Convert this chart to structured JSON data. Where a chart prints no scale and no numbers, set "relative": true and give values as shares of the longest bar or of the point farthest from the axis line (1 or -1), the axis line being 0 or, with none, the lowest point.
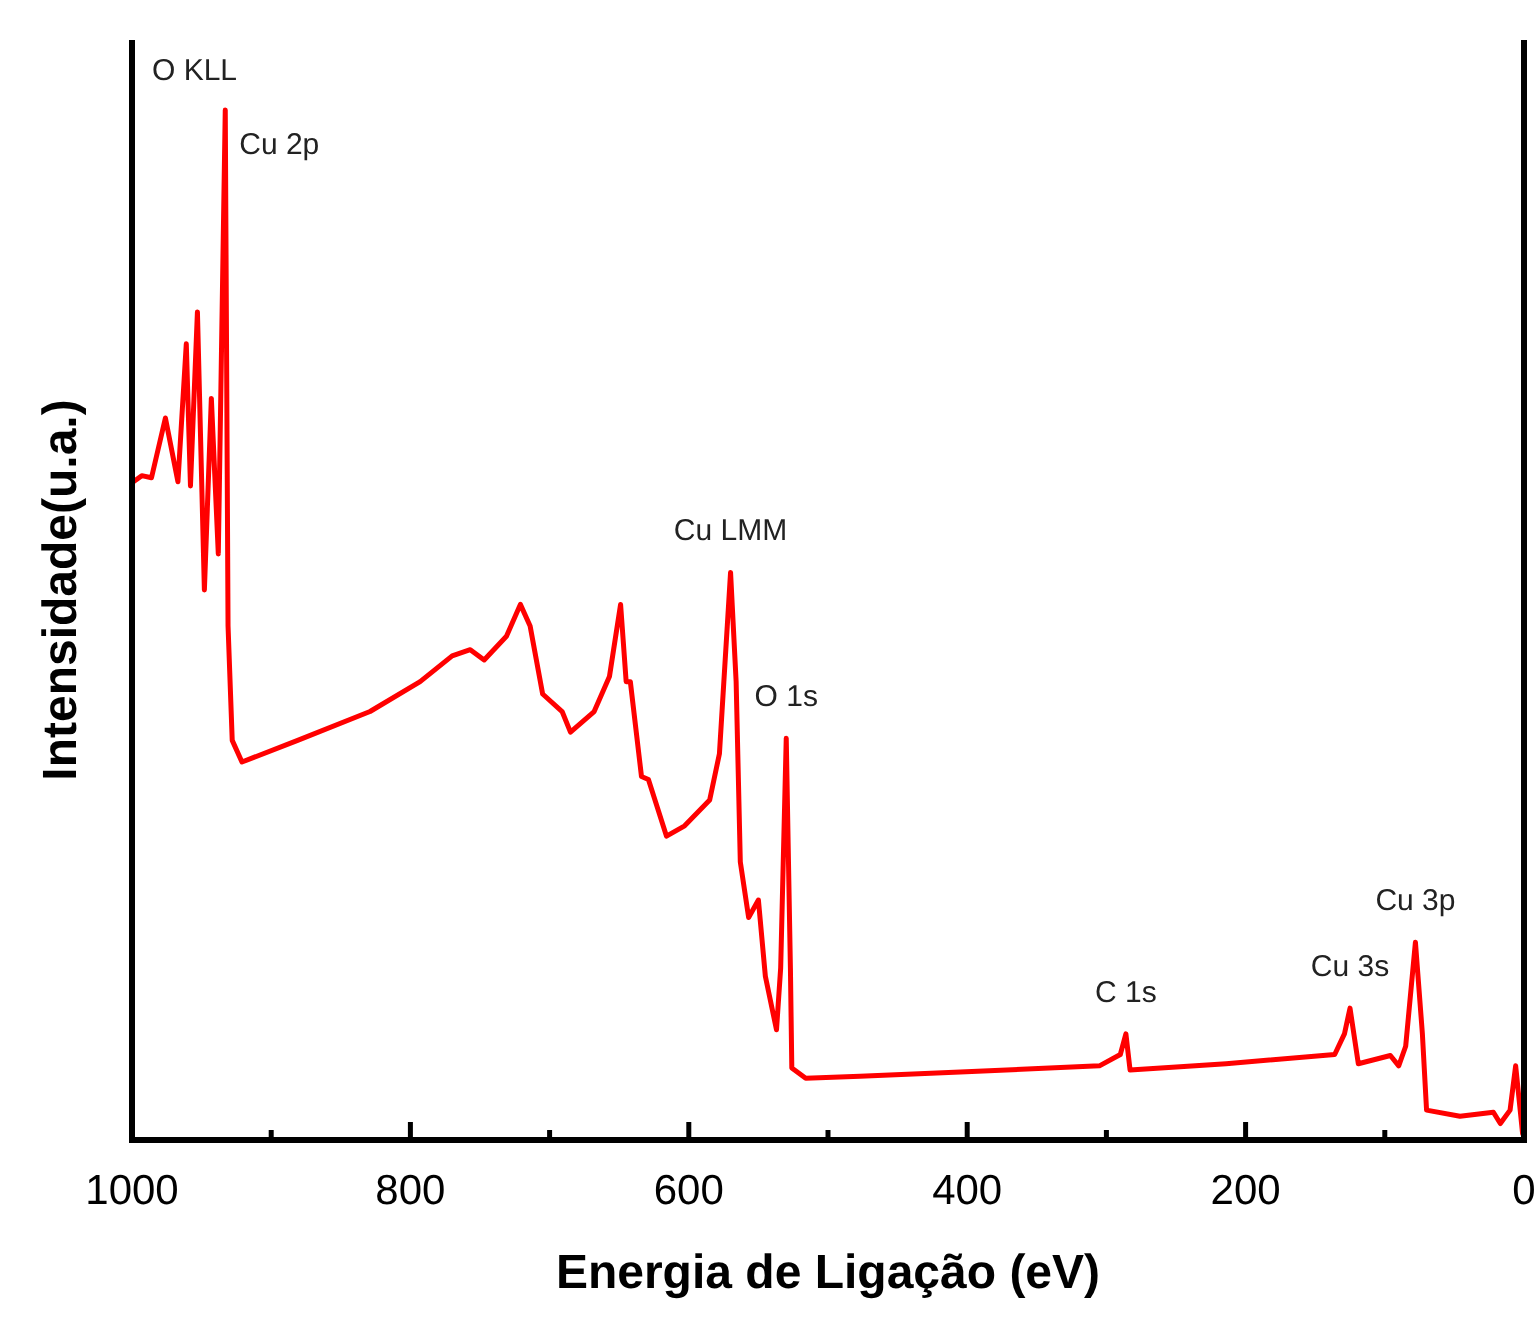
{
  "chart_data": {
    "type": "line",
    "xlabel": "Energia de Ligação (eV)",
    "ylabel": "Intensidade(u.a.)",
    "relative": true,
    "xlim": [
      1000,
      0
    ],
    "xticks": [
      1000,
      {
        "value": 900,
        "label": null
      },
      800,
      {
        "value": 700,
        "label": null
      },
      600,
      {
        "value": 500,
        "label": null
      },
      400,
      {
        "value": 300,
        "label": null
      },
      200,
      {
        "value": 100,
        "label": null
      },
      0
    ],
    "grid": false,
    "marker": "none",
    "line_style": "solid",
    "annotations": [
      "O KLL",
      {
        "text": "Cu 2p",
        "x": 933,
        "y": 1.0
      },
      {
        "text": "Cu LMM",
        "x": 570,
        "y": 0.551
      },
      {
        "text": "O 1s",
        "x": 530,
        "y": 0.39
      },
      {
        "text": "C 1s",
        "x": 286,
        "y": 0.103
      },
      {
        "text": "Cu 3s",
        "x": 125,
        "y": 0.128
      },
      {
        "text": "Cu 3p",
        "x": 78,
        "y": 0.192
      }
    ],
    "series": [
      {
        "color": "#ff0000",
        "x": [
          999,
          993,
          986,
          976,
          967,
          961,
          958,
          953,
          948,
          943,
          938,
          933,
          931,
          928,
          921,
          881,
          829,
          793,
          770,
          757,
          747,
          731,
          721,
          714,
          705,
          691,
          685,
          668,
          657,
          649,
          645,
          642,
          634,
          629,
          616,
          603,
          585,
          578,
          570,
          566,
          563,
          557,
          550,
          545,
          537,
          534,
          530,
          527,
          526,
          516,
          477,
          405,
          305,
          290,
          286,
          283,
          214,
          136,
          129,
          125,
          119,
          96,
          90,
          85,
          78,
          73,
          70,
          46,
          22,
          17,
          10,
          6,
          1
        ],
        "values": [
          0.639,
          0.645,
          0.643,
          0.701,
          0.639,
          0.773,
          0.635,
          0.804,
          0.534,
          0.72,
          0.569,
          1.0,
          0.499,
          0.388,
          0.367,
          0.388,
          0.416,
          0.445,
          0.47,
          0.476,
          0.466,
          0.489,
          0.52,
          0.499,
          0.433,
          0.416,
          0.396,
          0.416,
          0.45,
          0.52,
          0.445,
          0.445,
          0.353,
          0.35,
          0.295,
          0.305,
          0.33,
          0.375,
          0.551,
          0.445,
          0.27,
          0.216,
          0.233,
          0.159,
          0.107,
          0.167,
          0.39,
          0.167,
          0.07,
          0.06,
          0.062,
          0.066,
          0.072,
          0.083,
          0.103,
          0.068,
          0.074,
          0.083,
          0.103,
          0.128,
          0.074,
          0.082,
          0.072,
          0.091,
          0.192,
          0.103,
          0.029,
          0.023,
          0.027,
          0.016,
          0.029,
          0.072,
          0.006
        ]
      }
    ]
  }
}
